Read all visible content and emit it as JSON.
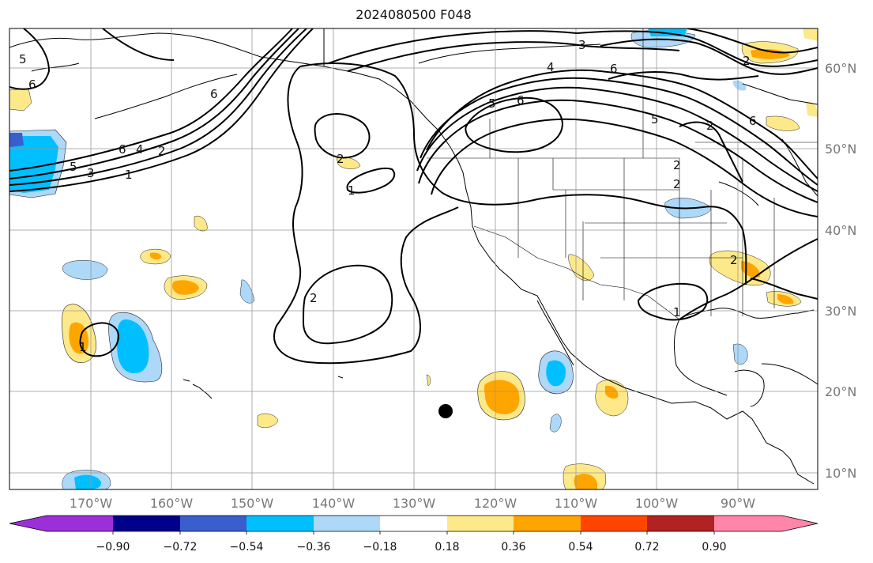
{
  "title": "2024080500 F048",
  "lat_labels": [
    "60°N",
    "50°N",
    "40°N",
    "30°N",
    "20°N",
    "10°N"
  ],
  "lon_labels": [
    "170°W",
    "160°W",
    "150°W",
    "140°W",
    "130°W",
    "120°W",
    "110°W",
    "100°W",
    "90°W"
  ],
  "colorbar": {
    "ticks": [
      "−0.90",
      "−0.72",
      "−0.54",
      "−0.36",
      "−0.18",
      "0.18",
      "0.36",
      "0.54",
      "0.72",
      "0.90"
    ],
    "colors": [
      "#9b30d8",
      "#00008b",
      "#3a5fcd",
      "#00bfff",
      "#add8f8",
      "#ffffff",
      "#fde98a",
      "#ffa500",
      "#ff4500",
      "#b22222",
      "#ff85a9"
    ]
  },
  "contour_labels": [
    "5",
    "6",
    "3",
    "4",
    "6",
    "2",
    "5",
    "6",
    "5",
    "6",
    "2",
    "6",
    "6",
    "4",
    "2",
    "3",
    "5",
    "1",
    "2",
    "1",
    "2",
    "1",
    "2",
    "1",
    "2",
    "2"
  ]
}
